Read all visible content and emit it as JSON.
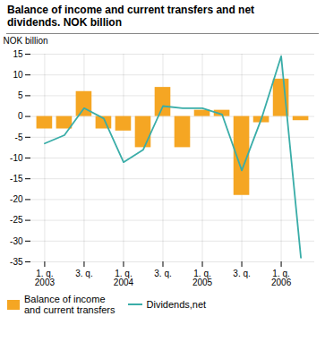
{
  "chart_data": {
    "type": "bar",
    "title": "Balance of income and current transfers and net\ndividends. NOK billion",
    "ylabel": "NOK billion",
    "categories": [
      "1. q.\n2003",
      null,
      "3. q.",
      null,
      "1. q.\n2004",
      null,
      "3. q.",
      null,
      "1. q.\n2005",
      null,
      "3. q.",
      null,
      "1. q.\n2006",
      null
    ],
    "series": [
      {
        "name": "Balance of income\nand current transfers",
        "type": "bar",
        "color": "#F5A623",
        "values": [
          -3.0,
          -3.0,
          6.0,
          -3.0,
          -3.5,
          -7.5,
          7.0,
          -7.5,
          1.5,
          1.5,
          -19.0,
          -1.5,
          9.0,
          -1.0
        ]
      },
      {
        "name": "Dividends,net",
        "type": "line",
        "color": "#3AADA8",
        "values": [
          -6.5,
          -4.5,
          2.0,
          -0.5,
          -11.0,
          -8.0,
          2.5,
          2.0,
          2.0,
          0.5,
          -13.0,
          -0.5,
          14.5,
          -34.0
        ]
      }
    ],
    "ylim": [
      -35,
      15
    ],
    "yticks": [
      -35,
      -30,
      -25,
      -20,
      -15,
      -10,
      -5,
      0,
      5,
      10,
      15
    ],
    "grid": true,
    "legend": "lower left"
  }
}
